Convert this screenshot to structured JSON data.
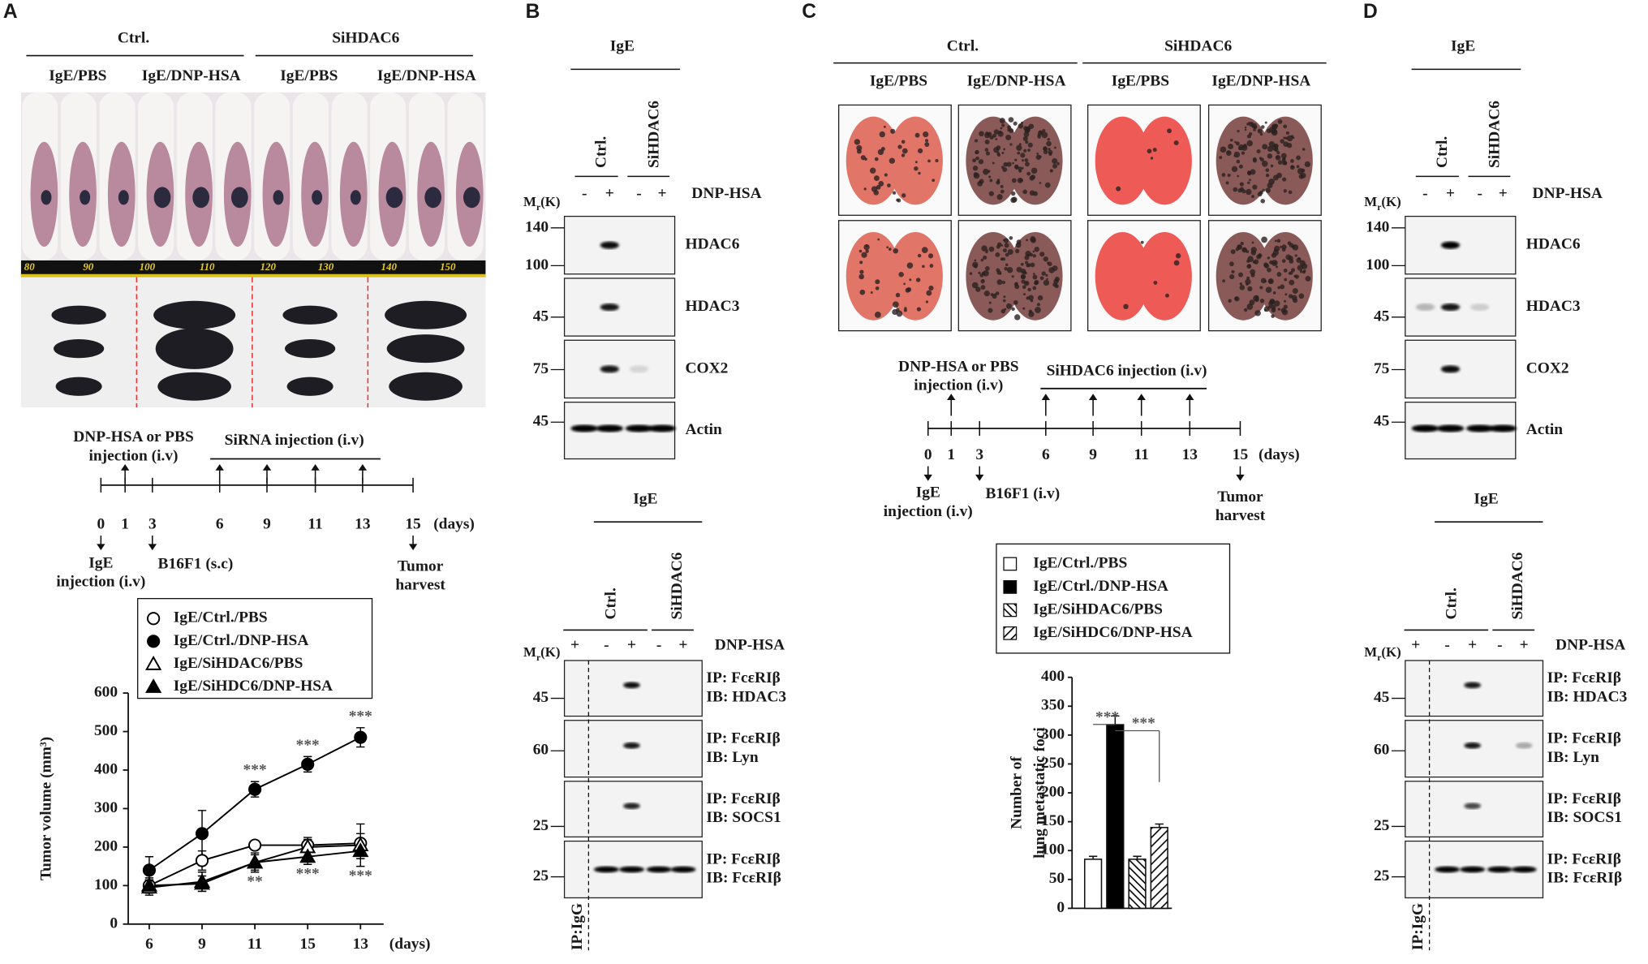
{
  "panel_a": {
    "letter": "A",
    "groups": [
      "Ctrl.",
      "SiHDAC6"
    ],
    "conditions": [
      "IgE/PBS",
      "IgE/DNP-HSA",
      "IgE/PBS",
      "IgE/DNP-HSA"
    ],
    "ruler": [
      "80",
      "90",
      "100",
      "110",
      "120",
      "130",
      "140",
      "150"
    ],
    "timeline": {
      "above": [
        "DNP-HSA or PBS",
        "injection (i.v)"
      ],
      "injection": "SiRNA  injection (i.v)",
      "days": [
        "0",
        "1",
        "3",
        "6",
        "9",
        "11",
        "13",
        "15"
      ],
      "unit": "(days)",
      "below_start": [
        "IgE",
        "injection (i.v)"
      ],
      "below_mid": "B16F1 (s.c)",
      "below_end": [
        "Tumor",
        "harvest"
      ]
    }
  },
  "panel_b": {
    "letter": "B",
    "expression": {
      "header": "IgE",
      "lanes": [
        "Ctrl.",
        "SiHDAC6"
      ],
      "signs": [
        "-",
        "+",
        "-",
        "+"
      ],
      "treatment": "DNP-HSA",
      "mr": [
        "M",
        "r",
        "(K)"
      ],
      "markers": [
        "140",
        "100",
        "45",
        "75",
        "45"
      ],
      "labels": [
        [
          "HDAC6"
        ],
        [
          "HDAC3"
        ],
        [
          "COX2"
        ],
        [
          "Actin"
        ]
      ]
    },
    "coip": {
      "header": "IgE",
      "lanes": [
        "Ctrl.",
        "SiHDAC6"
      ],
      "signs": [
        "+",
        "-",
        "+",
        "-",
        "+"
      ],
      "treatment": "DNP-HSA",
      "mr": [
        "M",
        "r",
        "(K)"
      ],
      "markers": [
        "45",
        "60",
        "25",
        "25"
      ],
      "labels": [
        [
          "IP: FcεRIβ",
          "IB: HDAC3"
        ],
        [
          "IP: FcεRIβ",
          "IB: Lyn"
        ],
        [
          "IP: FcεRIβ",
          "IB: SOCS1"
        ],
        [
          "IP: FcεRIβ",
          "IB: FcεRIβ"
        ]
      ],
      "control": "IP:IgG"
    }
  },
  "panel_c": {
    "letter": "C",
    "groups": [
      "Ctrl.",
      "SiHDAC6"
    ],
    "conditions": [
      "IgE/PBS",
      "IgE/DNP-HSA",
      "IgE/PBS",
      "IgE/DNP-HSA"
    ],
    "timeline": {
      "above": [
        "DNP-HSA or PBS",
        "injection (i.v)"
      ],
      "injection": "SiHDAC6 injection (i.v)",
      "days": [
        "0",
        "1",
        "3",
        "6",
        "9",
        "11",
        "13",
        "15"
      ],
      "unit": "(days)",
      "below_start": [
        "IgE",
        "injection (i.v)"
      ],
      "below_mid": "B16F1 (i.v)",
      "below_end": [
        "Tumor",
        "harvest"
      ]
    }
  },
  "panel_d": {
    "letter": "D",
    "expression": {
      "header": "IgE",
      "lanes": [
        "Ctrl.",
        "SiHDAC6"
      ],
      "signs": [
        "-",
        "+",
        "-",
        "+"
      ],
      "treatment": "DNP-HSA",
      "mr": [
        "M",
        "r",
        "(K)"
      ],
      "markers": [
        "140",
        "100",
        "45",
        "75",
        "45"
      ],
      "labels": [
        [
          "HDAC6"
        ],
        [
          "HDAC3"
        ],
        [
          "COX2"
        ],
        [
          "Actin"
        ]
      ]
    },
    "coip": {
      "header": "IgE",
      "lanes": [
        "Ctrl.",
        "SiHDAC6"
      ],
      "signs": [
        "+",
        "-",
        "+",
        "-",
        "+"
      ],
      "treatment": "DNP-HSA",
      "mr": [
        "M",
        "r",
        "(K)"
      ],
      "markers": [
        "45",
        "60",
        "25",
        "25"
      ],
      "labels": [
        [
          "IP: FcεRIβ",
          "IB: HDAC3"
        ],
        [
          "IP: FcεRIβ",
          "IB: Lyn"
        ],
        [
          "IP: FcεRIβ",
          "IB: SOCS1"
        ],
        [
          "IP: FcεRIβ",
          "IB: FcεRIβ"
        ]
      ],
      "control": "IP:IgG"
    }
  },
  "chart_data": [
    {
      "type": "line",
      "ylabel": "Tumor volume (mm³)",
      "xlabel": "(days)",
      "categories": [
        "6",
        "9",
        "11",
        "15",
        "13"
      ],
      "ylim": [
        0,
        600
      ],
      "yticks": [
        0,
        100,
        200,
        300,
        400,
        500,
        600
      ],
      "series": [
        {
          "name": "IgE/Ctrl./PBS",
          "color": "#000000",
          "marker": "circle",
          "marker_fill": "#ffffff",
          "values": [
            100,
            165,
            205,
            205,
            210
          ],
          "errors": [
            20,
            25,
            10,
            15,
            25
          ]
        },
        {
          "name": "IgE/Ctrl./DNP-HSA",
          "color": "#000000",
          "marker": "circle",
          "marker_fill": "#000000",
          "values": [
            140,
            235,
            350,
            415,
            485
          ],
          "errors": [
            35,
            60,
            20,
            20,
            25
          ]
        },
        {
          "name": "IgE/SiHDAC6/PBS",
          "color": "#000000",
          "marker": "triangle",
          "marker_fill": "#ffffff",
          "values": [
            95,
            110,
            160,
            200,
            205
          ],
          "errors": [
            20,
            25,
            25,
            25,
            55
          ]
        },
        {
          "name": "IgE/SiHDC6/DNP-HSA",
          "color": "#000000",
          "marker": "triangle",
          "marker_fill": "#000000",
          "values": [
            100,
            105,
            160,
            175,
            190
          ],
          "errors": [
            15,
            20,
            20,
            20,
            20
          ]
        }
      ],
      "upper_annotations": [
        null,
        null,
        "***",
        "***",
        "***"
      ],
      "lower_annotations": [
        null,
        null,
        "**",
        "***",
        "***"
      ]
    },
    {
      "type": "bar",
      "ylabel": [
        "Number of",
        "lung metastatic foci"
      ],
      "categories": [
        "IgE/Ctrl./PBS",
        "IgE/Ctrl./DNP-HSA",
        "IgE/SiHDAC6/PBS",
        "IgE/SiHDC6/DNP-HSA"
      ],
      "values": [
        85,
        318,
        85,
        140
      ],
      "errors": [
        5,
        15,
        5,
        6
      ],
      "fills": [
        "white",
        "black",
        "hatch-left",
        "hatch-right"
      ],
      "ylim": [
        0,
        400
      ],
      "yticks": [
        0,
        50,
        100,
        150,
        200,
        250,
        300,
        350,
        400
      ],
      "annotations": [
        "***",
        "***"
      ]
    }
  ]
}
